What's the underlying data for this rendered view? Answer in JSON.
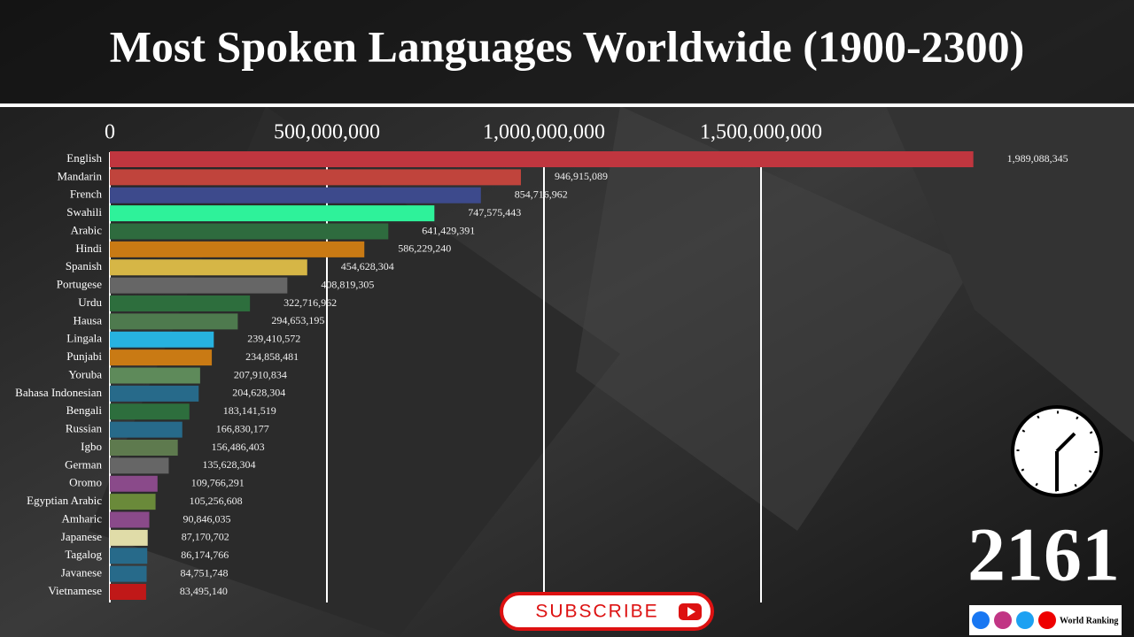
{
  "chart_data": {
    "type": "bar",
    "orientation": "horizontal",
    "title": "Most Spoken Languages Worldwide (1900-2300)",
    "annotation": "2161",
    "categories": [
      "English",
      "Mandarin",
      "French",
      "Swahili",
      "Arabic",
      "Hindi",
      "Spanish",
      "Portugese",
      "Urdu",
      "Hausa",
      "Lingala",
      "Punjabi",
      "Yoruba",
      "Bahasa Indonesian",
      "Bengali",
      "Russian",
      "Igbo",
      "German",
      "Oromo",
      "Egyptian Arabic",
      "Amharic",
      "Japanese",
      "Tagalog",
      "Javanese",
      "Vietnamese"
    ],
    "values": [
      1989088345,
      946915089,
      854716962,
      747575443,
      641429391,
      586229240,
      454628304,
      408819305,
      322716962,
      294653195,
      239410572,
      234858481,
      207910834,
      204628304,
      183141519,
      166830177,
      156486403,
      135628304,
      109766291,
      105256608,
      90846035,
      87170702,
      86174766,
      84751748,
      83495140
    ],
    "value_labels": [
      "1,989,088,345",
      "946,915,089",
      "854,716,962",
      "747,575,443",
      "641,429,391",
      "586,229,240",
      "454,628,304",
      "408,819,305",
      "322,716,962",
      "294,653,195",
      "239,410,572",
      "234,858,481",
      "207,910,834",
      "204,628,304",
      "183,141,519",
      "166,830,177",
      "156,486,403",
      "135,628,304",
      "109,766,291",
      "105,256,608",
      "90,846,035",
      "87,170,702",
      "86,174,766",
      "84,751,748",
      "83,495,140"
    ],
    "colors": [
      "#c0363f",
      "#c0443c",
      "#3d4a8c",
      "#2ef29a",
      "#2e6b3e",
      "#c97a14",
      "#d6b646",
      "#666666",
      "#2d6e3d",
      "#4e7a4e",
      "#27b2e0",
      "#c97a14",
      "#5e8a5a",
      "#276a8a",
      "#2d6e3d",
      "#276a8a",
      "#5e7a4e",
      "#666666",
      "#8a4a8a",
      "#6a8a3a",
      "#8a4a8a",
      "#e0dca8",
      "#276a8a",
      "#276a8a",
      "#c01818"
    ],
    "xlim": [
      0,
      2000000000
    ],
    "xticks": [
      0,
      {
        "value": 500000000,
        "label": "500,000,000"
      },
      {
        "value": 1000000000,
        "label": "1,000,000,000"
      },
      {
        "value": 1500000000,
        "label": "1,500,000,000"
      }
    ],
    "grid": true
  },
  "subscribe_button": "SUBSCRIBE",
  "channel": "World Ranking"
}
